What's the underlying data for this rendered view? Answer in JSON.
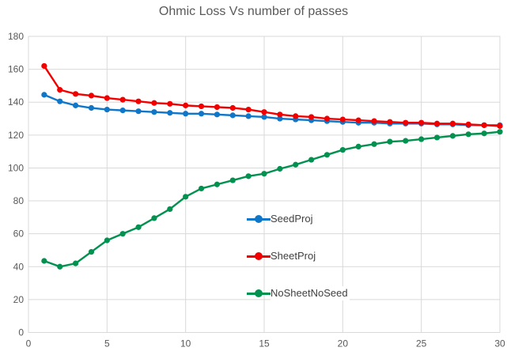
{
  "chart_data": {
    "type": "line",
    "title": "Ohmic Loss Vs number of passes",
    "xlabel": "",
    "ylabel": "",
    "xlim": [
      0,
      30
    ],
    "ylim": [
      0,
      180
    ],
    "x_ticks": [
      0,
      5,
      10,
      15,
      20,
      25,
      30
    ],
    "y_ticks": [
      0,
      20,
      40,
      60,
      80,
      100,
      120,
      140,
      160,
      180
    ],
    "grid": true,
    "legend_position": "center-inside",
    "x": [
      1,
      2,
      3,
      4,
      5,
      6,
      7,
      8,
      9,
      10,
      11,
      12,
      13,
      14,
      15,
      16,
      17,
      18,
      19,
      20,
      21,
      22,
      23,
      24,
      25,
      26,
      27,
      28,
      29,
      30
    ],
    "series": [
      {
        "name": "SeedProj",
        "color": "#0F76C8",
        "values": [
          144.5,
          140.5,
          138,
          136.5,
          135.5,
          135,
          134.5,
          134,
          133.5,
          133,
          133,
          132.5,
          132,
          131.5,
          131,
          130,
          129.5,
          129,
          128.5,
          128,
          127.5,
          127.5,
          127,
          127,
          127,
          126.5,
          126.5,
          126,
          126,
          126
        ]
      },
      {
        "name": "SheetProj",
        "color": "#F20000",
        "values": [
          162,
          147.5,
          145,
          144,
          142.5,
          141.5,
          140.5,
          139.5,
          139,
          138,
          137.5,
          137,
          136.5,
          135.5,
          134,
          132.5,
          131.5,
          131,
          130,
          129.5,
          129,
          128.5,
          128,
          127.5,
          127.5,
          127,
          127,
          126.5,
          126,
          125.5
        ]
      },
      {
        "name": "NoSheetNoSeed",
        "color": "#039150",
        "values": [
          43.5,
          40,
          42,
          49,
          56,
          60,
          64,
          69.5,
          75,
          82.5,
          87.5,
          90,
          92.5,
          95,
          96.5,
          99.5,
          102,
          105,
          108,
          111,
          113,
          114.5,
          116,
          116.5,
          117.5,
          118.5,
          119.5,
          120.5,
          121,
          122
        ]
      }
    ],
    "style": {
      "background": "#FFFFFF",
      "grid_color": "#D9D9D9",
      "tick_label_color": "#595959",
      "title_color": "#595959",
      "legend_text_color": "#404040"
    }
  }
}
